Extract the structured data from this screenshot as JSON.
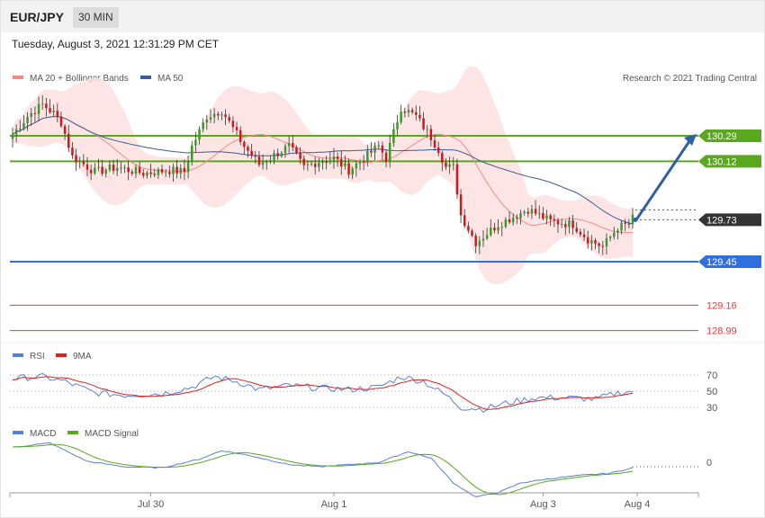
{
  "header": {
    "pair": "EUR/JPY",
    "timeframe": "30 MIN"
  },
  "timestamp": "Tuesday, August 3, 2021 12:31:29 PM CET",
  "legend": {
    "ma20": "MA 20 + Bollinger Bands",
    "ma50": "MA 50",
    "credit": "Research © 2021 Trading Central",
    "rsi": "RSI",
    "rsi_ma": "9MA",
    "macd": "MACD",
    "macd_signal": "MACD Signal"
  },
  "colors": {
    "ma20": "#f28b82",
    "ma50": "#3b5b9a",
    "bollinger_fill": "#fde0e0",
    "resistance": "#5aa81e",
    "support": "#2f6fe0",
    "support2": "#e03b3b",
    "current": "#333333",
    "arrow": "#2f5fa6",
    "candle_up": "#3a9a2a",
    "candle_down": "#d01818",
    "rsi": "#5a7fd6",
    "rsi_ma": "#e02020",
    "macd": "#5a7fd6",
    "macd_signal": "#5aa81e"
  },
  "chart_data": [
    {
      "type": "candlestick",
      "title": "EUR/JPY",
      "x_ticks": [
        "Jul 30",
        "Aug 1",
        "Aug 3",
        "Aug 4"
      ],
      "ylim": [
        128.85,
        130.6
      ],
      "levels": [
        {
          "value": 130.29,
          "label": "130.29",
          "kind": "resistance"
        },
        {
          "value": 130.12,
          "label": "130.12",
          "kind": "resistance"
        },
        {
          "value": 129.73,
          "label": "129.73",
          "kind": "current"
        },
        {
          "value": 129.45,
          "label": "129.45",
          "kind": "support"
        },
        {
          "value": 129.16,
          "label": "129.16",
          "kind": "support2"
        },
        {
          "value": 128.99,
          "label": "128.99",
          "kind": "support2"
        }
      ],
      "forecast_arrow": {
        "from": 129.73,
        "to": 130.29
      },
      "close_anchors": [
        [
          0,
          130.3
        ],
        [
          4,
          130.42
        ],
        [
          8,
          130.5
        ],
        [
          11,
          130.44
        ],
        [
          13,
          130.38
        ],
        [
          16,
          130.15
        ],
        [
          22,
          130.05
        ],
        [
          28,
          130.08
        ],
        [
          35,
          130.04
        ],
        [
          42,
          130.06
        ],
        [
          46,
          130.05
        ],
        [
          48,
          130.22
        ],
        [
          52,
          130.42
        ],
        [
          56,
          130.46
        ],
        [
          60,
          130.3
        ],
        [
          62,
          130.22
        ],
        [
          66,
          130.1
        ],
        [
          70,
          130.16
        ],
        [
          74,
          130.22
        ],
        [
          78,
          130.08
        ],
        [
          82,
          130.12
        ],
        [
          86,
          130.14
        ],
        [
          90,
          130.06
        ],
        [
          94,
          130.14
        ],
        [
          98,
          130.22
        ],
        [
          100,
          130.14
        ],
        [
          104,
          130.48
        ],
        [
          108,
          130.42
        ],
        [
          112,
          130.28
        ],
        [
          114,
          130.2
        ],
        [
          116,
          130.08
        ],
        [
          118,
          130.08
        ],
        [
          120,
          129.76
        ],
        [
          124,
          129.58
        ],
        [
          130,
          129.7
        ],
        [
          138,
          129.8
        ],
        [
          144,
          129.72
        ],
        [
          150,
          129.7
        ],
        [
          154,
          129.6
        ],
        [
          158,
          129.55
        ],
        [
          162,
          129.68
        ],
        [
          165,
          129.7
        ],
        [
          166,
          129.74
        ]
      ]
    },
    {
      "type": "line",
      "title": "RSI",
      "y_ticks": [
        70,
        50,
        30
      ],
      "ylim": [
        20,
        80
      ],
      "rsi_anchors": [
        [
          0,
          66
        ],
        [
          8,
          68
        ],
        [
          14,
          62
        ],
        [
          22,
          48
        ],
        [
          30,
          45
        ],
        [
          40,
          47
        ],
        [
          48,
          55
        ],
        [
          54,
          68
        ],
        [
          60,
          62
        ],
        [
          66,
          52
        ],
        [
          74,
          57
        ],
        [
          82,
          54
        ],
        [
          90,
          52
        ],
        [
          98,
          55
        ],
        [
          104,
          68
        ],
        [
          110,
          62
        ],
        [
          116,
          45
        ],
        [
          120,
          30
        ],
        [
          126,
          28
        ],
        [
          132,
          35
        ],
        [
          140,
          42
        ],
        [
          148,
          42
        ],
        [
          156,
          40
        ],
        [
          162,
          48
        ],
        [
          166,
          50
        ]
      ]
    },
    {
      "type": "line",
      "title": "MACD",
      "y_ticks": [
        0
      ],
      "ylim": [
        -0.32,
        0.3
      ],
      "macd_anchors": [
        [
          0,
          0.18
        ],
        [
          10,
          0.22
        ],
        [
          20,
          0.05
        ],
        [
          30,
          0.0
        ],
        [
          40,
          -0.01
        ],
        [
          50,
          0.07
        ],
        [
          56,
          0.15
        ],
        [
          64,
          0.1
        ],
        [
          74,
          0.02
        ],
        [
          82,
          0.0
        ],
        [
          90,
          0.02
        ],
        [
          98,
          0.04
        ],
        [
          106,
          0.14
        ],
        [
          112,
          0.08
        ],
        [
          118,
          -0.15
        ],
        [
          124,
          -0.28
        ],
        [
          130,
          -0.24
        ],
        [
          136,
          -0.15
        ],
        [
          144,
          -0.11
        ],
        [
          152,
          -0.08
        ],
        [
          160,
          -0.06
        ],
        [
          166,
          -0.01
        ]
      ]
    }
  ]
}
